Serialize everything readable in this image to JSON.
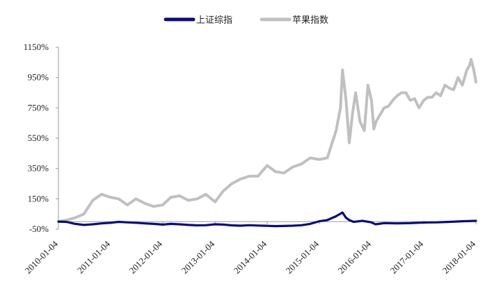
{
  "chart_data": {
    "type": "line",
    "title": "",
    "xlabel": "",
    "ylabel": "",
    "ylim": [
      -50,
      1150
    ],
    "y_ticks": [
      "1150%",
      "950%",
      "750%",
      "550%",
      "350%",
      "150%",
      "-50%"
    ],
    "x_ticks": [
      "2010-01-04",
      "2011-01-04",
      "2012-01-04",
      "2013-01-04",
      "2014-01-04",
      "2015-01-04",
      "2016-01-04",
      "2017-01-04",
      "2018-01-04"
    ],
    "xlim": [
      "2010-01-04",
      "2018-01-04"
    ],
    "legend_position": "top",
    "grid": false,
    "series": [
      {
        "name": "上证综指",
        "color": "#0a0a80",
        "x": [
          "2010-01-04",
          "2010-03-01",
          "2010-05-01",
          "2010-07-01",
          "2010-09-01",
          "2010-11-01",
          "2011-01-04",
          "2011-03-01",
          "2011-05-01",
          "2011-07-01",
          "2011-09-01",
          "2011-11-01",
          "2012-01-04",
          "2012-03-01",
          "2012-05-01",
          "2012-07-01",
          "2012-09-01",
          "2012-11-01",
          "2013-01-04",
          "2013-03-01",
          "2013-05-01",
          "2013-07-01",
          "2013-09-01",
          "2013-11-01",
          "2014-01-04",
          "2014-03-01",
          "2014-05-01",
          "2014-07-01",
          "2014-09-01",
          "2014-11-01",
          "2015-01-04",
          "2015-03-01",
          "2015-05-01",
          "2015-06-15",
          "2015-07-10",
          "2015-08-01",
          "2015-09-01",
          "2015-11-01",
          "2016-01-04",
          "2016-02-01",
          "2016-04-01",
          "2016-07-01",
          "2016-10-01",
          "2017-01-04",
          "2017-04-01",
          "2017-07-01",
          "2017-10-01",
          "2018-01-04"
        ],
        "values": [
          0,
          -2,
          -15,
          -22,
          -18,
          -12,
          -8,
          -2,
          -5,
          -8,
          -12,
          -15,
          -20,
          -15,
          -18,
          -22,
          -25,
          -24,
          -18,
          -20,
          -25,
          -27,
          -24,
          -26,
          -28,
          -30,
          -29,
          -27,
          -24,
          -15,
          2,
          10,
          35,
          60,
          25,
          10,
          -2,
          5,
          -5,
          -18,
          -10,
          -12,
          -10,
          -6,
          -5,
          -2,
          2,
          5
        ]
      },
      {
        "name": "苹果指数",
        "color": "#c0c0c0",
        "x": [
          "2010-01-04",
          "2010-03-01",
          "2010-05-01",
          "2010-07-01",
          "2010-09-01",
          "2010-11-01",
          "2011-01-04",
          "2011-03-01",
          "2011-05-01",
          "2011-07-01",
          "2011-09-01",
          "2011-11-01",
          "2012-01-04",
          "2012-03-01",
          "2012-05-01",
          "2012-07-01",
          "2012-09-01",
          "2012-11-01",
          "2013-01-04",
          "2013-03-01",
          "2013-05-01",
          "2013-07-01",
          "2013-09-01",
          "2013-11-01",
          "2014-01-04",
          "2014-03-01",
          "2014-05-01",
          "2014-07-01",
          "2014-09-01",
          "2014-11-01",
          "2015-01-04",
          "2015-03-01",
          "2015-05-01",
          "2015-06-01",
          "2015-06-15",
          "2015-07-10",
          "2015-08-01",
          "2015-08-25",
          "2015-09-15",
          "2015-10-15",
          "2015-11-15",
          "2015-12-10",
          "2016-01-04",
          "2016-01-20",
          "2016-02-05",
          "2016-03-01",
          "2016-04-01",
          "2016-05-01",
          "2016-06-01",
          "2016-07-01",
          "2016-08-01",
          "2016-09-01",
          "2016-10-01",
          "2016-11-01",
          "2016-12-01",
          "2017-01-04",
          "2017-02-01",
          "2017-03-01",
          "2017-04-01",
          "2017-05-01",
          "2017-06-01",
          "2017-07-01",
          "2017-08-01",
          "2017-09-01",
          "2017-10-01",
          "2017-11-01",
          "2017-11-20",
          "2017-12-01",
          "2017-12-20",
          "2018-01-04"
        ],
        "values": [
          0,
          10,
          25,
          50,
          140,
          180,
          160,
          150,
          110,
          150,
          120,
          100,
          110,
          160,
          170,
          140,
          150,
          180,
          130,
          200,
          250,
          280,
          300,
          300,
          370,
          330,
          320,
          360,
          380,
          420,
          410,
          420,
          600,
          750,
          1000,
          800,
          520,
          720,
          850,
          660,
          600,
          900,
          800,
          610,
          660,
          700,
          750,
          760,
          800,
          830,
          850,
          850,
          800,
          810,
          750,
          800,
          820,
          820,
          850,
          830,
          900,
          880,
          870,
          950,
          900,
          1000,
          1030,
          1070,
          1000,
          920
        ]
      }
    ]
  }
}
